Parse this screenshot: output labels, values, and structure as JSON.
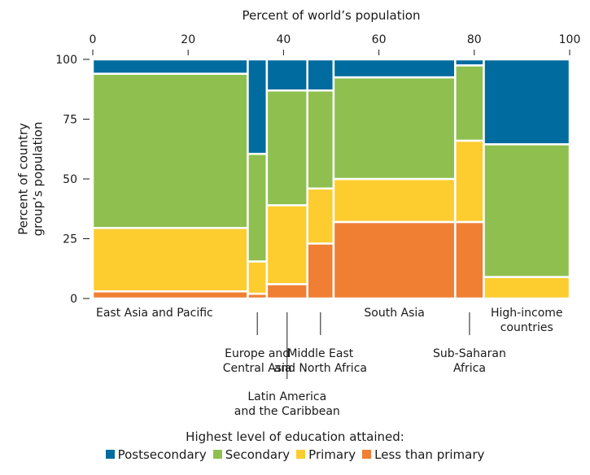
{
  "chart_data": {
    "type": "mosaic",
    "x_axis": {
      "title": "Percent of world’s population",
      "ticks": [
        0,
        20,
        40,
        60,
        80,
        100
      ],
      "range": [
        0,
        100
      ]
    },
    "y_axis": {
      "title_lines": [
        "Percent of country",
        "group’s population"
      ],
      "ticks": [
        0,
        25,
        50,
        75,
        100
      ],
      "range": [
        0,
        100
      ]
    },
    "categories_order": [
      "Less than primary",
      "Primary",
      "Secondary",
      "Postsecondary"
    ],
    "colors": {
      "Postsecondary": "#006b9f",
      "Secondary": "#8fc04f",
      "Primary": "#fdcc2f",
      "Less than primary": "#f07f33"
    },
    "groups": [
      {
        "name": "East Asia and Pacific",
        "label_lines": [
          "East Asia and Pacific"
        ],
        "x_start": 0,
        "x_end": 32.5,
        "values": {
          "Less than primary": 3,
          "Primary": 26.5,
          "Secondary": 64.5,
          "Postsecondary": 6
        }
      },
      {
        "name": "Europe and Central Asia",
        "label_lines": [
          "Europe and",
          "Central Asia"
        ],
        "x_start": 32.5,
        "x_end": 36.5,
        "values": {
          "Less than primary": 2,
          "Primary": 13.5,
          "Secondary": 45,
          "Postsecondary": 39.5
        }
      },
      {
        "name": "Latin America and the Caribbean",
        "label_lines": [
          "Latin America",
          "and the Caribbean"
        ],
        "x_start": 36.5,
        "x_end": 45,
        "values": {
          "Less than primary": 6,
          "Primary": 33,
          "Secondary": 48,
          "Postsecondary": 13
        }
      },
      {
        "name": "Middle East and North Africa",
        "label_lines": [
          "Middle East",
          "and North Africa"
        ],
        "x_start": 45,
        "x_end": 50.5,
        "values": {
          "Less than primary": 23,
          "Primary": 23,
          "Secondary": 41,
          "Postsecondary": 13
        }
      },
      {
        "name": "South Asia",
        "label_lines": [
          "South Asia"
        ],
        "x_start": 50.5,
        "x_end": 76,
        "values": {
          "Less than primary": 32,
          "Primary": 18,
          "Secondary": 42.5,
          "Postsecondary": 7.5
        }
      },
      {
        "name": "Sub-Saharan Africa",
        "label_lines": [
          "Sub-Saharan",
          "Africa"
        ],
        "x_start": 76,
        "x_end": 82,
        "values": {
          "Less than primary": 32,
          "Primary": 34,
          "Secondary": 31.5,
          "Postsecondary": 2.5
        }
      },
      {
        "name": "High-income countries",
        "label_lines": [
          "High-income",
          "countries"
        ],
        "x_start": 82,
        "x_end": 100,
        "values": {
          "Less than primary": 0,
          "Primary": 9,
          "Secondary": 55.5,
          "Postsecondary": 35.5
        }
      }
    ]
  },
  "legend": {
    "title": "Highest level of education attained:",
    "items": [
      {
        "label": "Postsecondary",
        "color": "#006b9f"
      },
      {
        "label": "Secondary",
        "color": "#8fc04f"
      },
      {
        "label": "Primary",
        "color": "#fdcc2f"
      },
      {
        "label": "Less than primary",
        "color": "#f07f33"
      }
    ]
  }
}
